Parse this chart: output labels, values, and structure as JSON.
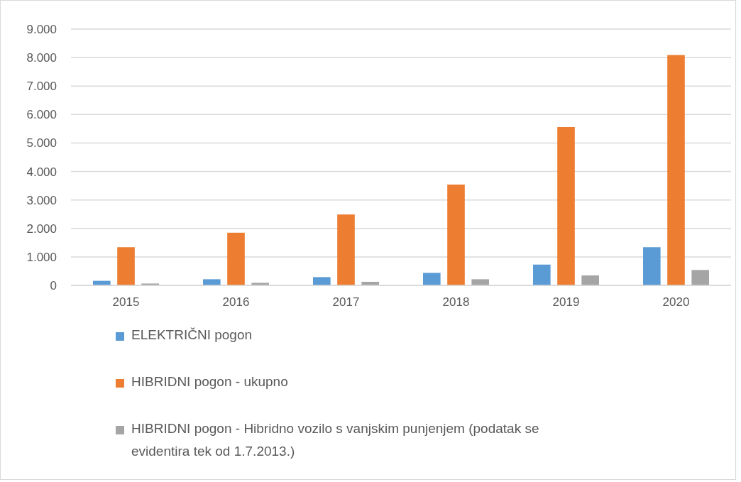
{
  "chart_data": {
    "type": "bar",
    "categories": [
      "2015",
      "2016",
      "2017",
      "2018",
      "2019",
      "2020"
    ],
    "series": [
      {
        "name": "ELEKTRIČNI pogon",
        "color": "#5b9bd5",
        "values": [
          160,
          215,
          290,
          440,
          730,
          1340
        ]
      },
      {
        "name": "HIBRIDNI pogon - ukupno",
        "color": "#ed7d31",
        "values": [
          1340,
          1850,
          2490,
          3540,
          5560,
          8090
        ]
      },
      {
        "name": "HIBRIDNI pogon - Hibridno vozilo s vanjskim punjenjem (podatak se evidentira tek od 1.7.2013.)",
        "color": "#a5a5a5",
        "values": [
          65,
          90,
          125,
          215,
          350,
          540
        ]
      }
    ],
    "ylim": [
      0,
      9000
    ],
    "yticks": [
      {
        "value": 0,
        "label": "0"
      },
      {
        "value": 1000,
        "label": "1.000"
      },
      {
        "value": 2000,
        "label": "2.000"
      },
      {
        "value": 3000,
        "label": "3.000"
      },
      {
        "value": 4000,
        "label": "4.000"
      },
      {
        "value": 5000,
        "label": "5.000"
      },
      {
        "value": 6000,
        "label": "6.000"
      },
      {
        "value": 7000,
        "label": "7.000"
      },
      {
        "value": 8000,
        "label": "8.000"
      },
      {
        "value": 9000,
        "label": "9.000"
      }
    ],
    "grid": "y",
    "legend": "bottom"
  }
}
